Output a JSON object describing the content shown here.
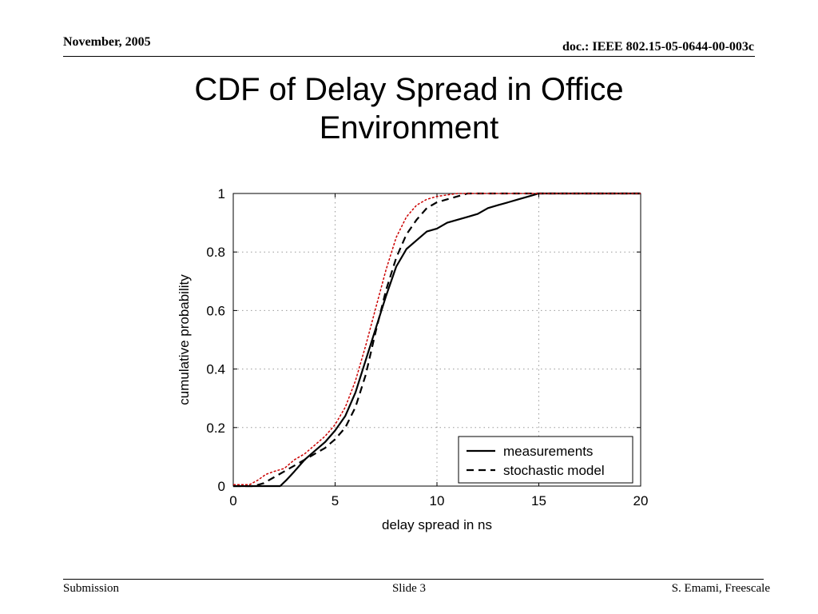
{
  "header": {
    "date": "November, 2005",
    "doc_id": "doc.: IEEE 802.15-05-0644-00-003c"
  },
  "slide": {
    "title_line1": "CDF of Delay Spread in Office",
    "title_line2": "Environment"
  },
  "footer": {
    "left": "Submission",
    "center": "Slide 3",
    "right": "S. Emami, Freescale"
  },
  "chart_data": {
    "type": "line",
    "title": "",
    "xlabel": "delay spread in ns",
    "ylabel": "cumulative probability",
    "xlim": [
      0,
      20
    ],
    "ylim": [
      0,
      1
    ],
    "xticks": [
      0,
      5,
      10,
      15,
      20
    ],
    "yticks": [
      0,
      0.2,
      0.4,
      0.6,
      0.8,
      1
    ],
    "ytick_labels": [
      "0",
      "0.2",
      "0.4",
      "0.6",
      "0.8",
      "1"
    ],
    "grid": true,
    "legend_position": "bottom-right",
    "series": [
      {
        "name": "measurements",
        "color": "#000000",
        "dash": "solid",
        "x": [
          0,
          2.3,
          2.6,
          3.0,
          3.5,
          4.0,
          4.5,
          5.0,
          5.5,
          6.0,
          6.5,
          7.0,
          7.5,
          8.0,
          8.5,
          9.0,
          9.5,
          10.0,
          10.5,
          11.0,
          11.5,
          12.0,
          12.5,
          13.0,
          13.5,
          14.0,
          14.5,
          15.0,
          20.0
        ],
        "y": [
          0,
          0,
          0.02,
          0.05,
          0.09,
          0.12,
          0.15,
          0.19,
          0.24,
          0.32,
          0.43,
          0.54,
          0.65,
          0.75,
          0.81,
          0.84,
          0.87,
          0.88,
          0.9,
          0.91,
          0.92,
          0.93,
          0.95,
          0.96,
          0.97,
          0.98,
          0.99,
          1.0,
          1.0
        ]
      },
      {
        "name": "stochastic model",
        "color": "#000000",
        "dash": "dashed",
        "x": [
          0,
          1.0,
          1.5,
          2.0,
          2.5,
          3.0,
          3.5,
          4.0,
          4.5,
          5.0,
          5.5,
          6.0,
          6.5,
          7.0,
          7.5,
          8.0,
          8.5,
          9.0,
          9.5,
          10.0,
          10.5,
          11.0,
          11.5,
          12.0,
          20.0
        ],
        "y": [
          0,
          0,
          0.01,
          0.03,
          0.05,
          0.07,
          0.09,
          0.11,
          0.13,
          0.16,
          0.2,
          0.27,
          0.38,
          0.53,
          0.67,
          0.78,
          0.86,
          0.91,
          0.95,
          0.97,
          0.98,
          0.99,
          1.0,
          1.0,
          1.0
        ]
      },
      {
        "name": "",
        "color": "#cc0000",
        "dash": "dotted",
        "x": [
          0,
          0.8,
          1.2,
          1.6,
          2.0,
          2.5,
          3.0,
          3.5,
          4.0,
          4.5,
          5.0,
          5.5,
          6.0,
          6.5,
          7.0,
          7.5,
          8.0,
          8.5,
          9.0,
          9.5,
          10.0,
          10.5,
          11.0,
          12.0,
          20.0
        ],
        "y": [
          0.005,
          0.005,
          0.02,
          0.04,
          0.05,
          0.06,
          0.09,
          0.11,
          0.14,
          0.17,
          0.21,
          0.27,
          0.36,
          0.48,
          0.61,
          0.74,
          0.85,
          0.92,
          0.96,
          0.98,
          0.99,
          0.995,
          1.0,
          1.0,
          1.0
        ]
      }
    ]
  }
}
